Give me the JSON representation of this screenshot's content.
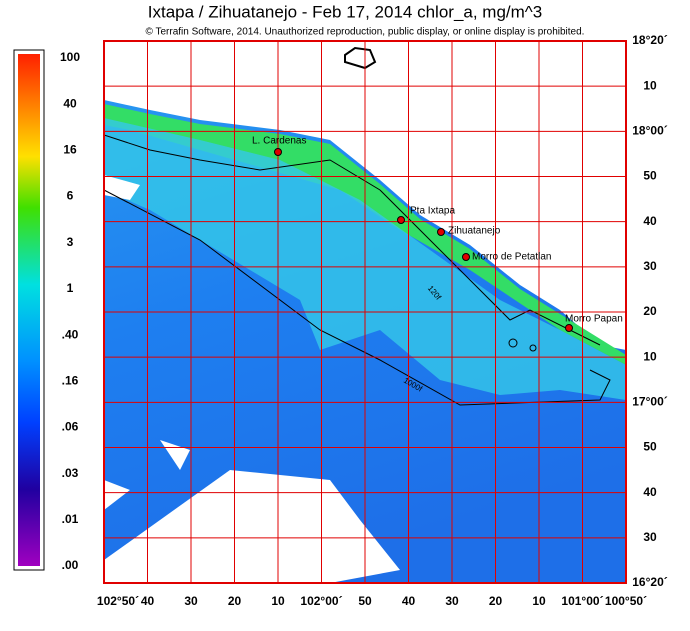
{
  "header": {
    "title": "Ixtapa / Zihuatanejo - Feb 17, 2014  chlor_a, mg/m^3",
    "subtitle": "© Terrafin Software,  2014.  Unauthorized reproduction, public display, or online display is prohibited."
  },
  "colorbar": {
    "labels": [
      "100",
      "40",
      "16",
      "6",
      "3",
      "1",
      ".40",
      ".16",
      ".06",
      ".03",
      ".01",
      ".00"
    ]
  },
  "latitude_labels": [
    "18°20´",
    "10",
    "18°00´",
    "50",
    "40",
    "30",
    "20",
    "10",
    "17°00´",
    "50",
    "40",
    "30",
    "16°20´"
  ],
  "longitude_labels": [
    "102°50´",
    "40",
    "30",
    "20",
    "10",
    "102°00´",
    "50",
    "40",
    "30",
    "20",
    "10",
    "101°00´",
    "100°50´"
  ],
  "places": [
    "L. Cardenas",
    "Pta Ixtapa",
    "Zihuatanejo",
    "Morro de Petatlan",
    "Morro Papan"
  ],
  "contours": [
    "120f",
    "1000f"
  ]
}
